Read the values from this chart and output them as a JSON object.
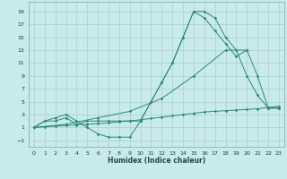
{
  "color": "#2e8b74",
  "bg_color": "#c8eaea",
  "grid_color": "#a8d0d0",
  "xlabel": "Humidex (Indice chaleur)",
  "xlim": [
    -0.5,
    23.5
  ],
  "ylim": [
    -2,
    20.5
  ],
  "xticks": [
    0,
    1,
    2,
    3,
    4,
    5,
    6,
    7,
    8,
    9,
    10,
    11,
    12,
    13,
    14,
    15,
    16,
    17,
    18,
    19,
    20,
    21,
    22,
    23
  ],
  "yticks": [
    -1,
    1,
    3,
    5,
    7,
    9,
    11,
    13,
    15,
    17,
    19
  ],
  "series": [
    {
      "x": [
        0,
        1,
        2,
        3,
        4,
        5,
        6,
        7,
        8,
        9,
        10,
        11,
        12,
        13,
        14,
        15,
        16,
        17,
        18,
        19,
        20,
        21,
        22,
        23
      ],
      "y": [
        1,
        2,
        2.5,
        3,
        2,
        1,
        0,
        -0.5,
        -0.5,
        -0.5,
        2,
        5,
        8,
        11,
        15,
        19,
        19,
        18,
        15,
        13,
        9,
        6,
        4,
        4
      ]
    },
    {
      "x": [
        0,
        1,
        2,
        3,
        4,
        5,
        6,
        7,
        8,
        9,
        10,
        11,
        12,
        13,
        14,
        15,
        16,
        17,
        18,
        19,
        20,
        21,
        22,
        23
      ],
      "y": [
        1,
        2,
        2,
        2.5,
        1.5,
        2,
        2,
        2,
        2,
        2,
        2,
        5,
        8,
        11,
        15,
        19,
        18,
        16,
        14,
        12,
        13,
        9,
        4,
        4
      ]
    },
    {
      "x": [
        0,
        1,
        2,
        3,
        4,
        5,
        6,
        7,
        8,
        9,
        10,
        11,
        12,
        13,
        14,
        15,
        16,
        17,
        18,
        19,
        20,
        21,
        22,
        23
      ],
      "y": [
        1,
        1.1,
        1.2,
        1.3,
        1.4,
        1.5,
        1.6,
        1.7,
        1.9,
        2.0,
        2.2,
        2.4,
        2.6,
        2.8,
        3.0,
        3.2,
        3.4,
        3.5,
        3.6,
        3.7,
        3.8,
        3.9,
        4.1,
        4.3
      ]
    },
    {
      "x": [
        0,
        3,
        6,
        9,
        12,
        15,
        18,
        20
      ],
      "y": [
        1,
        1.5,
        2.5,
        3.5,
        5.5,
        9,
        13,
        13
      ]
    }
  ]
}
